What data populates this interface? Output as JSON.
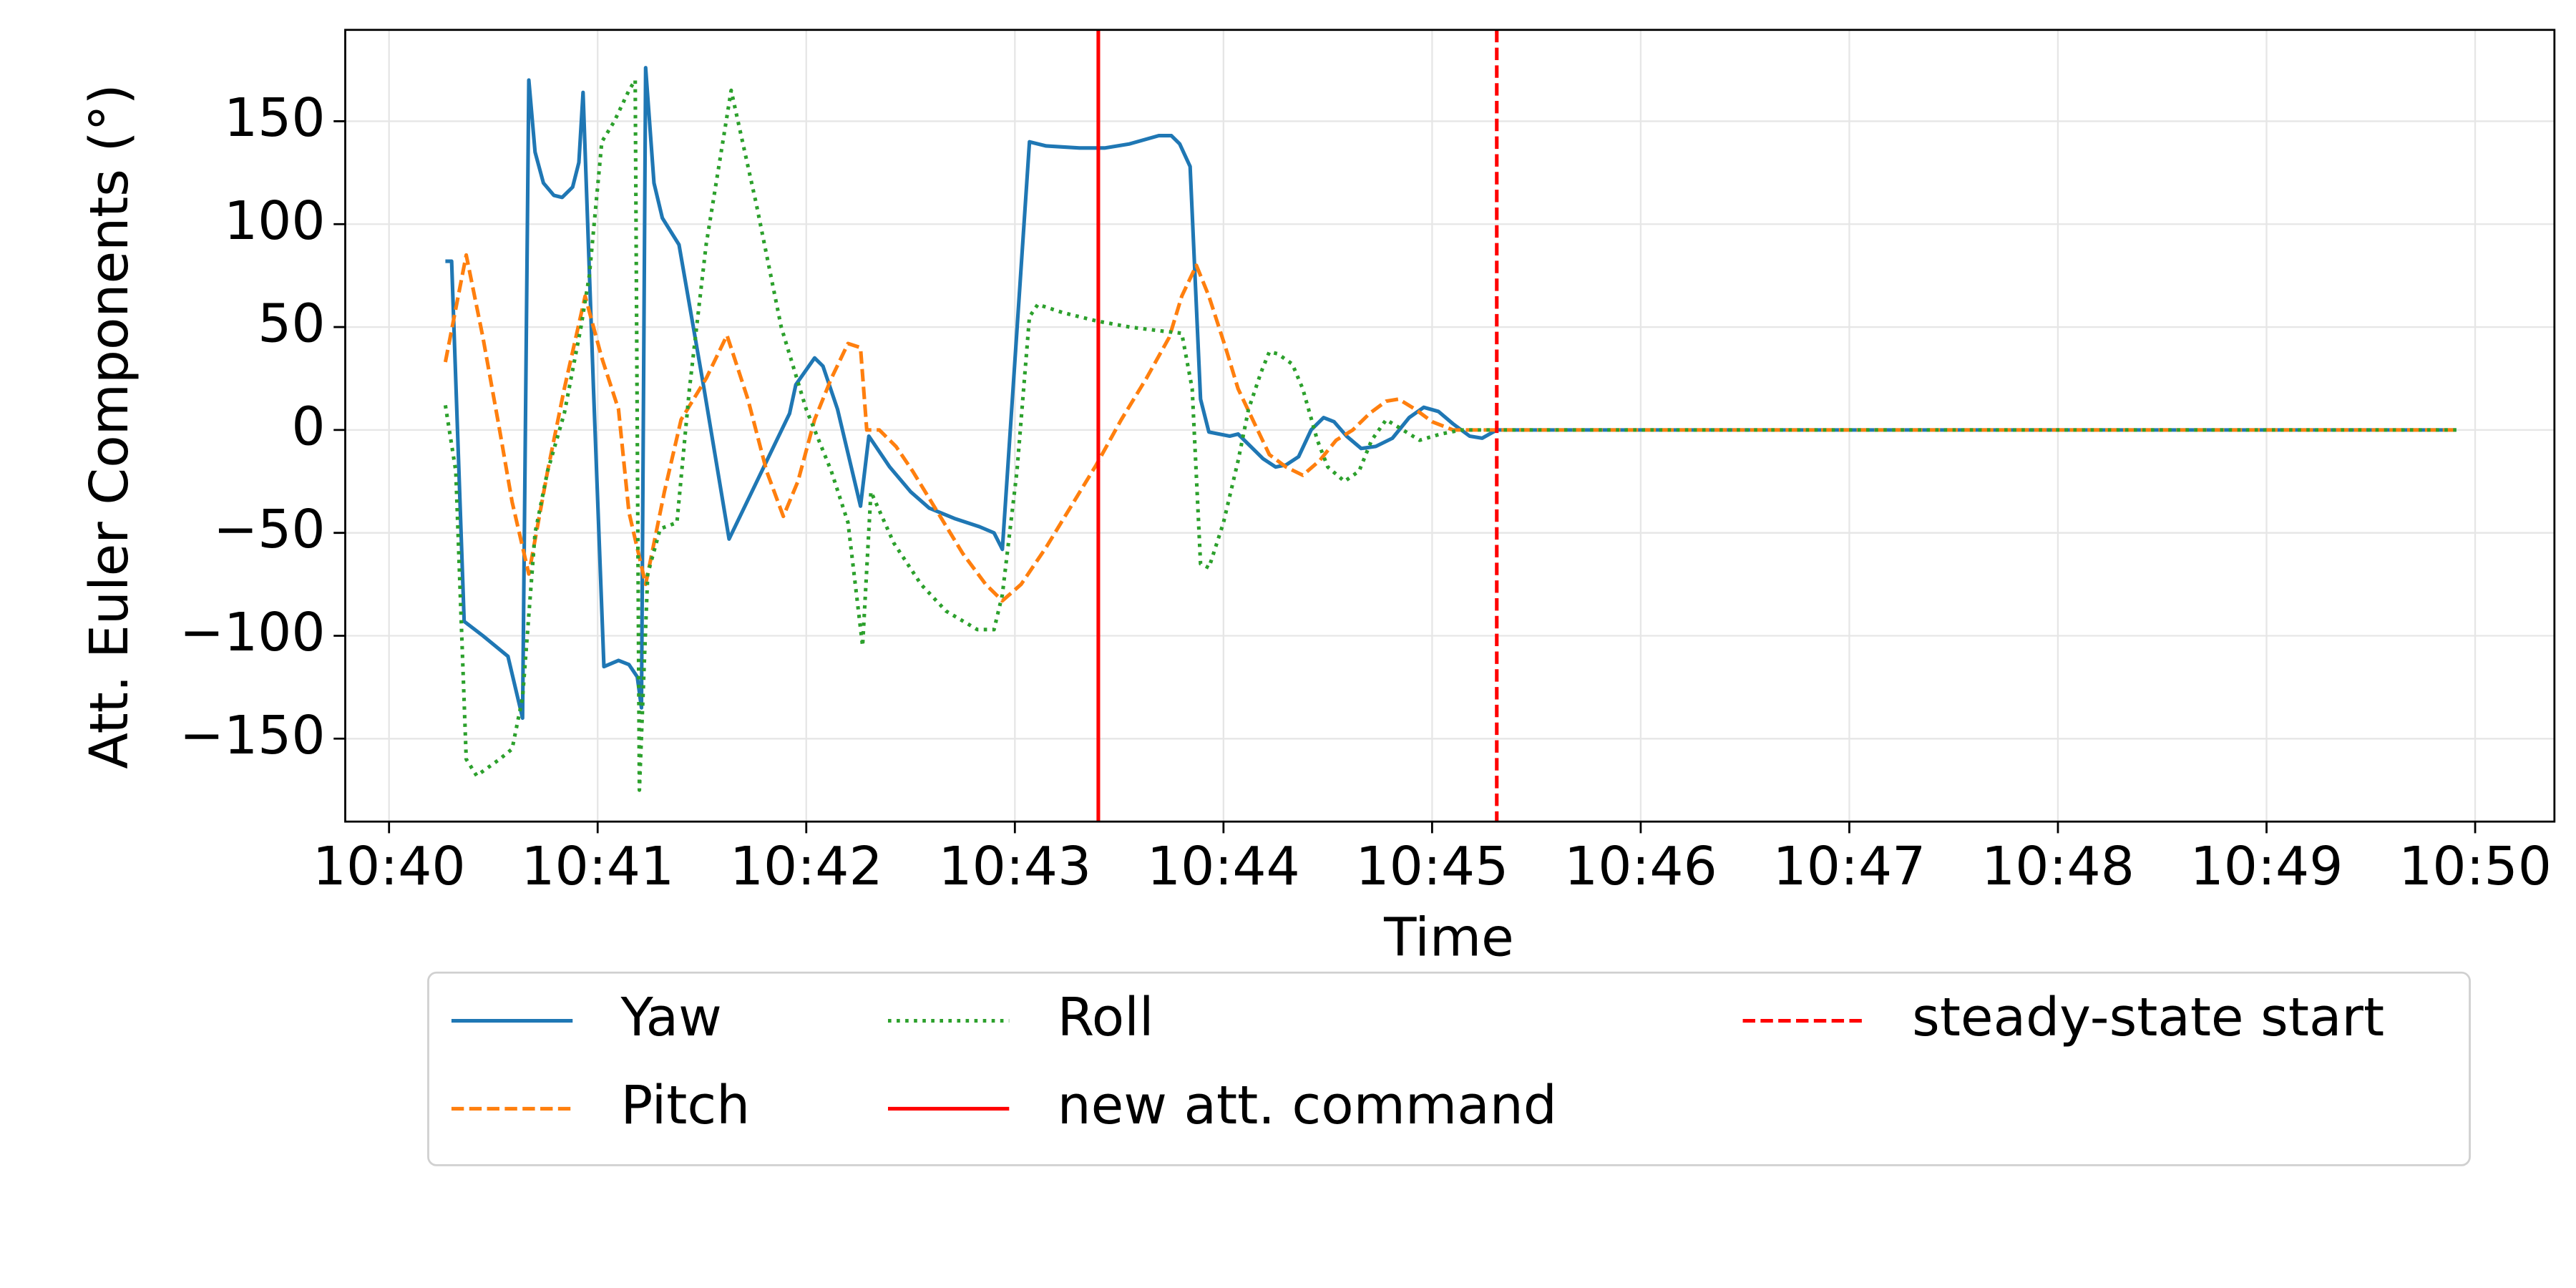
{
  "chart_data": {
    "type": "line",
    "xlabel": "Time",
    "ylabel": "Att. Euler Components (°)",
    "xlim": [
      639.79,
      650.38
    ],
    "ylim": [
      -190.3,
      194.4
    ],
    "xticks": [
      {
        "value": 640,
        "label": "10:40"
      },
      {
        "value": 641,
        "label": "10:41"
      },
      {
        "value": 642,
        "label": "10:42"
      },
      {
        "value": 643,
        "label": "10:43"
      },
      {
        "value": 644,
        "label": "10:44"
      },
      {
        "value": 645,
        "label": "10:45"
      },
      {
        "value": 646,
        "label": "10:46"
      },
      {
        "value": 647,
        "label": "10:47"
      },
      {
        "value": 648,
        "label": "10:48"
      },
      {
        "value": 649,
        "label": "10:49"
      },
      {
        "value": 650,
        "label": "10:50"
      }
    ],
    "yticks": [
      {
        "value": -150,
        "label": "−150"
      },
      {
        "value": -100,
        "label": "−100"
      },
      {
        "value": -50,
        "label": "−50"
      },
      0,
      50,
      100,
      150
    ],
    "grid": true,
    "series": [
      {
        "name": "Yaw",
        "color": "#1f77b4",
        "linestyle": "solid",
        "x": [
          640.27,
          640.3,
          640.36,
          640.45,
          640.57,
          640.64,
          640.67,
          640.7,
          640.74,
          640.79,
          640.83,
          640.88,
          640.91,
          640.93,
          640.98,
          641.03,
          641.1,
          641.15,
          641.19,
          641.21,
          641.23,
          641.27,
          641.31,
          641.39,
          641.51,
          641.63,
          641.92,
          641.95,
          642.04,
          642.08,
          642.15,
          642.26,
          642.3,
          642.4,
          642.5,
          642.59,
          642.71,
          642.83,
          642.9,
          642.94,
          643.07,
          643.15,
          643.31,
          643.43,
          643.55,
          643.69,
          643.75,
          643.79,
          643.84,
          643.89,
          643.93,
          644.03,
          644.07,
          644.12,
          644.19,
          644.25,
          644.3,
          644.36,
          644.42,
          644.48,
          644.53,
          644.59,
          644.66,
          644.73,
          644.81,
          644.89,
          644.96,
          645.03,
          645.1,
          645.18,
          645.24,
          645.31,
          649.91
        ],
        "values": [
          82,
          82,
          -93,
          -100,
          -110,
          -140,
          170,
          135,
          120,
          114,
          113,
          118,
          130,
          164,
          20,
          -115,
          -112,
          -114,
          -120,
          -135,
          176,
          120,
          103,
          90,
          20,
          -53,
          8,
          22,
          35,
          31,
          10,
          -37,
          -3,
          -18,
          -30,
          -38,
          -43,
          -47,
          -50,
          -58,
          140,
          138,
          137,
          137,
          139,
          143,
          143,
          139,
          128,
          15,
          -1,
          -3,
          -2,
          -7,
          -14,
          -18,
          -17,
          -13,
          0,
          6,
          4,
          -3,
          -9,
          -8,
          -4,
          6,
          11,
          9,
          3,
          -3,
          -4,
          0,
          0
        ]
      },
      {
        "name": "Pitch",
        "color": "#ff7f0e",
        "linestyle": "dashed",
        "x": [
          640.27,
          640.37,
          640.45,
          640.53,
          640.59,
          640.67,
          640.76,
          640.84,
          640.94,
          641.02,
          641.1,
          641.15,
          641.23,
          641.32,
          641.4,
          641.52,
          641.62,
          641.72,
          641.81,
          641.89,
          641.96,
          642.04,
          642.12,
          642.2,
          642.26,
          642.29,
          642.35,
          642.43,
          642.51,
          642.63,
          642.75,
          642.86,
          642.94,
          643.03,
          643.15,
          643.27,
          643.39,
          643.51,
          643.63,
          643.74,
          643.8,
          643.87,
          643.93,
          644.01,
          644.07,
          644.14,
          644.22,
          644.3,
          644.38,
          644.46,
          644.54,
          644.62,
          644.7,
          644.78,
          644.84,
          644.92,
          645.0,
          645.1,
          645.31,
          649.91
        ],
        "values": [
          33,
          85,
          45,
          0,
          -35,
          -70,
          -20,
          20,
          65,
          35,
          10,
          -40,
          -75,
          -30,
          5,
          25,
          46,
          15,
          -20,
          -42,
          -25,
          5,
          25,
          42,
          40,
          0,
          0,
          -8,
          -20,
          -40,
          -60,
          -75,
          -83,
          -75,
          -57,
          -37,
          -17,
          5,
          25,
          45,
          65,
          80,
          65,
          40,
          20,
          5,
          -12,
          -18,
          -22,
          -15,
          -5,
          0,
          8,
          14,
          15,
          10,
          4,
          0,
          0,
          0
        ]
      },
      {
        "name": "Roll",
        "color": "#2ca02c",
        "linestyle": "dotted",
        "x": [
          640.27,
          640.32,
          640.37,
          640.42,
          640.53,
          640.59,
          640.64,
          640.7,
          640.76,
          640.84,
          640.92,
          640.96,
          641.02,
          641.08,
          641.15,
          641.18,
          641.2,
          641.24,
          641.3,
          641.38,
          641.44,
          641.52,
          641.64,
          641.76,
          641.88,
          642.0,
          642.12,
          642.2,
          642.27,
          642.31,
          642.42,
          642.55,
          642.67,
          642.82,
          642.9,
          642.94,
          643.01,
          643.07,
          643.11,
          643.23,
          643.39,
          643.55,
          643.71,
          643.8,
          643.85,
          643.89,
          643.93,
          644.0,
          644.07,
          644.12,
          644.18,
          644.22,
          644.26,
          644.33,
          644.38,
          644.45,
          644.5,
          644.58,
          644.65,
          644.71,
          644.78,
          644.86,
          644.94,
          645.04,
          645.14,
          645.31,
          649.91
        ],
        "values": [
          12,
          -20,
          -160,
          -168,
          -160,
          -155,
          -130,
          -50,
          -20,
          8,
          50,
          75,
          140,
          150,
          165,
          170,
          -175,
          -70,
          -48,
          -45,
          20,
          90,
          165,
          110,
          50,
          10,
          -20,
          -45,
          -105,
          -30,
          -55,
          -75,
          -88,
          -97,
          -97,
          -80,
          -20,
          55,
          61,
          57,
          53,
          50,
          48,
          47,
          20,
          -65,
          -67,
          -45,
          -15,
          10,
          28,
          38,
          37,
          32,
          20,
          -5,
          -18,
          -25,
          -20,
          -5,
          5,
          0,
          -5,
          -2,
          0,
          0,
          0
        ]
      }
    ],
    "vlines": [
      {
        "name": "new att. command",
        "color": "#ff0000",
        "linestyle": "solid",
        "x": 643.4
      },
      {
        "name": "steady-state start",
        "color": "#ff0000",
        "linestyle": "dashed",
        "x": 645.31
      }
    ],
    "legend": "below"
  }
}
